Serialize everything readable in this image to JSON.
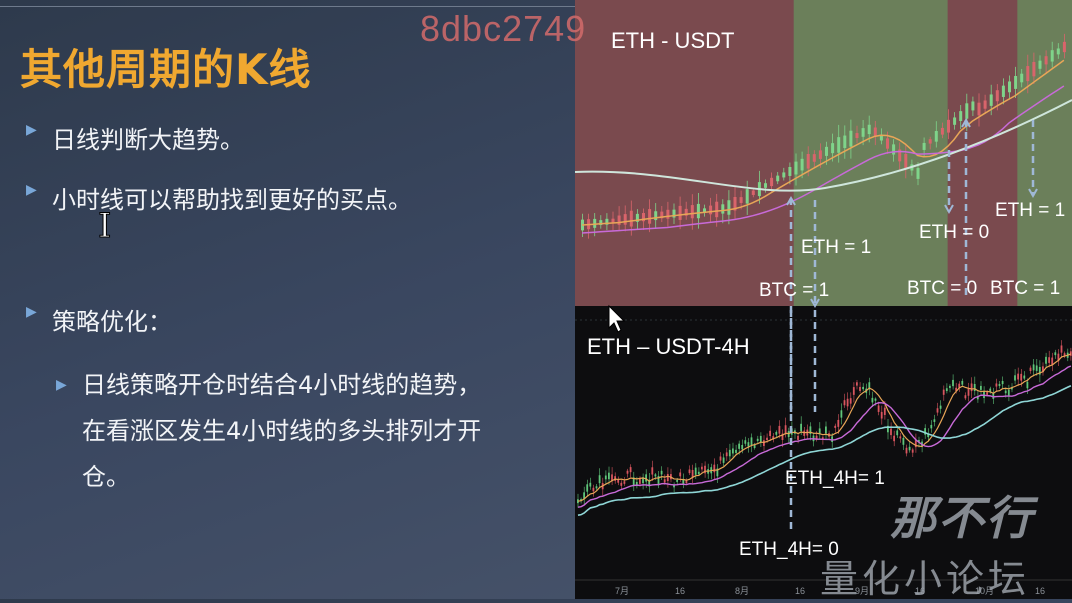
{
  "watermark": "8dbc2749",
  "slide": {
    "title": "其他周期的K线",
    "bullets": [
      "日线判断大趋势。",
      "小时线可以帮助找到更好的买点。",
      "策略优化："
    ],
    "sub_bullet_lines": [
      "日线策略开仓时结合4小时线的趋势，",
      "在看涨区发生4小时线的多头排列才开",
      "仓。"
    ]
  },
  "chart_data": [
    {
      "type": "candlestick",
      "title": "ETH - USDT",
      "timeframe": "1D",
      "zones": [
        {
          "from": 0,
          "to": 0.44,
          "signal": "red"
        },
        {
          "from": 0.44,
          "to": 0.75,
          "signal": "green"
        },
        {
          "from": 0.75,
          "to": 0.89,
          "signal": "red"
        },
        {
          "from": 0.89,
          "to": 1.0,
          "signal": "green"
        }
      ],
      "annotations": [
        "ETH = 1",
        "ETH = 0",
        "ETH = 1",
        "BTC = 1",
        "BTC = 0",
        "BTC = 1"
      ]
    },
    {
      "type": "candlestick",
      "title": "ETH – USDT-4H",
      "timeframe": "4H",
      "annotations": [
        "ETH_4H= 1",
        "ETH_4H= 0"
      ],
      "x_tick_labels": [
        "7月",
        "16",
        "8月",
        "16",
        "9月",
        "16",
        "10月",
        "16"
      ]
    }
  ],
  "logo_text": {
    "line1": "那不行",
    "line2": "量化小论坛"
  }
}
